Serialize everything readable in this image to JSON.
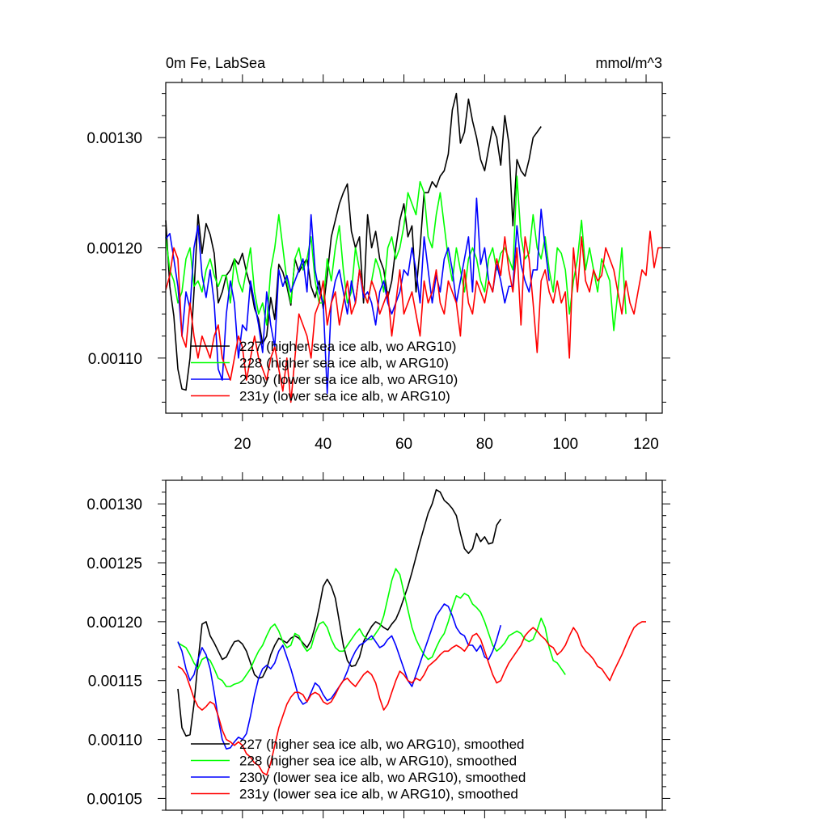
{
  "chart_data": [
    {
      "type": "line",
      "title_left": "0m Fe, LabSea",
      "title_right": "mmol/m^3",
      "xlabel": "",
      "ylabel": "",
      "xlim": [
        1,
        124
      ],
      "ylim": [
        0.00105,
        0.00135
      ],
      "xticks": [
        20,
        40,
        60,
        80,
        100,
        120
      ],
      "xticklabels": [
        "20",
        "40",
        "60",
        "80",
        "100",
        "120"
      ],
      "yticks": [
        0.0011,
        0.0012,
        0.0013
      ],
      "yticklabels": [
        "0.00110",
        "0.00120",
        "0.00130"
      ],
      "grid": false,
      "legend_position": "bottom-left",
      "series": [
        {
          "name": "227 (higher sea ice alb, wo ARG10)",
          "color": "#000000",
          "x_start": 1,
          "values": [
            0.001225,
            0.001165,
            0.001138,
            0.00109,
            0.001072,
            0.001071,
            0.0011,
            0.00116,
            0.00123,
            0.001195,
            0.001222,
            0.001212,
            0.001195,
            0.00115,
            0.00116,
            0.001175,
            0.00118,
            0.00119,
            0.001185,
            0.001195,
            0.001178,
            0.001165,
            0.001145,
            0.001135,
            0.001113,
            0.00112,
            0.001155,
            0.001135,
            0.001185,
            0.001178,
            0.001165,
            0.001148,
            0.00119,
            0.001178,
            0.001185,
            0.00119,
            0.001165,
            0.001155,
            0.00117,
            0.001145,
            0.001175,
            0.00121,
            0.001225,
            0.00124,
            0.00125,
            0.001258,
            0.001215,
            0.0012,
            0.00121,
            0.00115,
            0.00123,
            0.0012,
            0.001215,
            0.00119,
            0.00118,
            0.001155,
            0.00117,
            0.0012,
            0.001225,
            0.00124,
            0.00121,
            0.00122,
            0.00116,
            0.0012,
            0.00125,
            0.00125,
            0.00126,
            0.001255,
            0.001265,
            0.00127,
            0.001285,
            0.001325,
            0.00134,
            0.001295,
            0.001305,
            0.001335,
            0.001315,
            0.0013,
            0.00128,
            0.00127,
            0.00129,
            0.00131,
            0.0013,
            0.001275,
            0.00132,
            0.001295,
            0.00122,
            0.00128,
            0.00127,
            0.001265,
            0.00128,
            0.0013,
            0.001305,
            0.00131
          ]
        },
        {
          "name": "228 (higher sea ice alb, w ARG10)",
          "color": "#00ff00",
          "x_start": 1,
          "values": [
            0.00121,
            0.00118,
            0.00117,
            0.00115,
            0.00116,
            0.00119,
            0.0012,
            0.001165,
            0.00117,
            0.00116,
            0.00118,
            0.00119,
            0.001175,
            0.001165,
            0.001175,
            0.001175,
            0.00115,
            0.00119,
            0.00117,
            0.00116,
            0.00118,
            0.0012,
            0.00116,
            0.00114,
            0.00115,
            0.00113,
            0.00118,
            0.0012,
            0.00123,
            0.0012,
            0.00117,
            0.00115,
            0.00119,
            0.0012,
            0.00118,
            0.00119,
            0.00121,
            0.00117,
            0.00115,
            0.00115,
            0.00119,
            0.00117,
            0.0012,
            0.00122,
            0.00118,
            0.00115,
            0.00116,
            0.0012,
            0.00118,
            0.00116,
            0.00115,
            0.00117,
            0.00119,
            0.00118,
            0.00116,
            0.0012,
            0.00121,
            0.00119,
            0.0012,
            0.00122,
            0.00125,
            0.00124,
            0.00123,
            0.00126,
            0.00125,
            0.00121,
            0.0012,
            0.00123,
            0.00125,
            0.00122,
            0.00119,
            0.00117,
            0.0012,
            0.00118,
            0.00116,
            0.00119,
            0.0012,
            0.00119,
            0.00117,
            0.00116,
            0.00119,
            0.0012,
            0.00118,
            0.001195,
            0.0012,
            0.00119,
            0.00118,
            0.001265,
            0.00121,
            0.00119,
            0.001195,
            0.00123,
            0.0012,
            0.00119,
            0.00121,
            0.00118,
            0.00116,
            0.0012,
            0.001195,
            0.00118,
            0.00114,
            0.00117,
            0.00119,
            0.001225,
            0.00118,
            0.0012,
            0.00118,
            0.00116,
            0.00119,
            0.00118,
            0.00117,
            0.001125,
            0.00116,
            0.0012,
            0.00114
          ]
        },
        {
          "name": "230y (lower sea ice alb, wo ARG10)",
          "color": "#0000ff",
          "x_start": 1,
          "values": [
            0.001208,
            0.001213,
            0.00119,
            0.001165,
            0.00112,
            0.00116,
            0.001145,
            0.0012,
            0.00122,
            0.001175,
            0.001155,
            0.00118,
            0.00115,
            0.00109,
            0.00108,
            0.00114,
            0.00117,
            0.00115,
            0.0011,
            0.00113,
            0.001125,
            0.00117,
            0.00115,
            0.00113,
            0.001105,
            0.00116,
            0.00113,
            0.00111,
            0.00118,
            0.001165,
            0.001175,
            0.00116,
            0.00117,
            0.00118,
            0.00119,
            0.00116,
            0.00123,
            0.00118,
            0.00116,
            0.00115,
            0.001068,
            0.00115,
            0.00117,
            0.00118,
            0.00116,
            0.00114,
            0.00117,
            0.00115,
            0.00118,
            0.001155,
            0.00116,
            0.00115,
            0.00113,
            0.00116,
            0.00117,
            0.00115,
            0.00114,
            0.00115,
            0.00116,
            0.00118,
            0.001175,
            0.0012,
            0.00118,
            0.00115,
            0.00121,
            0.00118,
            0.00115,
            0.001175,
            0.00116,
            0.00119,
            0.0012,
            0.00118,
            0.00115,
            0.00117,
            0.00119,
            0.00121,
            0.00116,
            0.001245,
            0.001185,
            0.0012,
            0.00117,
            0.00116,
            0.001185,
            0.00117,
            0.00115,
            0.001165,
            0.001165,
            0.00122,
            0.001185,
            0.00117,
            0.00116,
            0.00118,
            0.00118,
            0.001235,
            0.0012,
            0.00117
          ]
        },
        {
          "name": "231y (lower sea ice alb, w ARG10)",
          "color": "#ff0000",
          "x_start": 1,
          "values": [
            0.001162,
            0.001175,
            0.0012,
            0.00119,
            0.00112,
            0.00111,
            0.00115,
            0.00112,
            0.0011,
            0.00112,
            0.00111,
            0.0011,
            0.00112,
            0.00113,
            0.0011,
            0.00109,
            0.00108,
            0.0011,
            0.00112,
            0.00111,
            0.00108,
            0.0011,
            0.00112,
            0.0011,
            0.00109,
            0.00108,
            0.0011,
            0.00111,
            0.00109,
            0.00107,
            0.0011,
            0.00106,
            0.0011,
            0.00114,
            0.00113,
            0.00112,
            0.0011,
            0.00114,
            0.00115,
            0.00117,
            0.00113,
            0.00115,
            0.00116,
            0.00113,
            0.00115,
            0.00117,
            0.00114,
            0.00115,
            0.00118,
            0.00116,
            0.00115,
            0.00117,
            0.00116,
            0.00114,
            0.00115,
            0.00116,
            0.00112,
            0.00115,
            0.00118,
            0.00114,
            0.00115,
            0.00116,
            0.00114,
            0.00112,
            0.00117,
            0.00115,
            0.00116,
            0.00118,
            0.00115,
            0.00114,
            0.00117,
            0.00116,
            0.00115,
            0.00112,
            0.00118,
            0.00115,
            0.00114,
            0.00117,
            0.00116,
            0.00115,
            0.00117,
            0.00116,
            0.00119,
            0.001175,
            0.00121,
            0.00118,
            0.00116,
            0.0012,
            0.00113,
            0.00121,
            0.00119,
            0.00115,
            0.001105,
            0.00117,
            0.00118,
            0.00116,
            0.00115,
            0.00117,
            0.00115,
            0.00116,
            0.0011,
            0.0012,
            0.00116,
            0.00121,
            0.00117,
            0.00116,
            0.00118,
            0.00117,
            0.001175,
            0.0012,
            0.00119,
            0.00118,
            0.00116,
            0.00114,
            0.00117,
            0.00115,
            0.00114,
            0.00116,
            0.00118,
            0.001175,
            0.001215,
            0.001182,
            0.0012,
            0.0012
          ]
        }
      ]
    },
    {
      "type": "line",
      "title_left": "",
      "title_right": "",
      "xlabel": "",
      "ylabel": "",
      "xlim": [
        1,
        124
      ],
      "ylim": [
        0.00104,
        0.00132
      ],
      "xticks": [
        20,
        40,
        60,
        80,
        100,
        120
      ],
      "xticklabels": [],
      "yticks": [
        0.00105,
        0.0011,
        0.00115,
        0.0012,
        0.00125,
        0.0013
      ],
      "yticklabels": [
        "0.00105",
        "0.00110",
        "0.00115",
        "0.00120",
        "0.00125",
        "0.00130"
      ],
      "grid": false,
      "legend_position": "bottom-left",
      "series": [
        {
          "name": "227 (higher sea ice alb, wo ARG10), smoothed",
          "color": "#000000",
          "x_start": 4,
          "values": [
            0.001143,
            0.00111,
            0.001103,
            0.001104,
            0.00113,
            0.001166,
            0.001198,
            0.0012,
            0.001188,
            0.001182,
            0.001175,
            0.001168,
            0.00117,
            0.001177,
            0.001183,
            0.001184,
            0.001181,
            0.001175,
            0.001165,
            0.001155,
            0.001152,
            0.001153,
            0.00116,
            0.001172,
            0.00118,
            0.001186,
            0.001184,
            0.001182,
            0.001186,
            0.001188,
            0.001186,
            0.001182,
            0.001178,
            0.001184,
            0.001196,
            0.001212,
            0.00123,
            0.001236,
            0.00123,
            0.00122,
            0.0012,
            0.00118,
            0.001167,
            0.001162,
            0.001163,
            0.00117,
            0.001183,
            0.00119,
            0.001196,
            0.0012,
            0.001198,
            0.001195,
            0.001193,
            0.001198,
            0.001202,
            0.00121,
            0.00122,
            0.00123,
            0.001242,
            0.001255,
            0.001268,
            0.00128,
            0.001292,
            0.0013,
            0.001312,
            0.00131,
            0.001303,
            0.0013,
            0.001296,
            0.00129,
            0.001275,
            0.001262,
            0.001258,
            0.001262,
            0.001275,
            0.001268,
            0.001272,
            0.001266,
            0.001267,
            0.001282,
            0.001287
          ]
        },
        {
          "name": "228 (higher sea ice alb, w ARG10), smoothed",
          "color": "#00ff00",
          "x_start": 4,
          "values": [
            0.001182,
            0.00118,
            0.001178,
            0.001172,
            0.001165,
            0.00116,
            0.001168,
            0.00117,
            0.001167,
            0.00116,
            0.001152,
            0.00115,
            0.001145,
            0.001145,
            0.001147,
            0.001148,
            0.00115,
            0.001155,
            0.00116,
            0.001168,
            0.001175,
            0.00118,
            0.001188,
            0.001195,
            0.001198,
            0.001192,
            0.001183,
            0.001178,
            0.00118,
            0.00119,
            0.001188,
            0.00118,
            0.001175,
            0.001178,
            0.00119,
            0.001198,
            0.0012,
            0.001195,
            0.001185,
            0.001178,
            0.001175,
            0.001175,
            0.00118,
            0.001185,
            0.00119,
            0.001194,
            0.001188,
            0.001185,
            0.001185,
            0.00119,
            0.001195,
            0.001205,
            0.00122,
            0.001235,
            0.001245,
            0.00124,
            0.001225,
            0.00121,
            0.001195,
            0.001185,
            0.001178,
            0.001172,
            0.001168,
            0.00117,
            0.001178,
            0.001185,
            0.00119,
            0.0012,
            0.001212,
            0.001222,
            0.00122,
            0.001224,
            0.001222,
            0.001215,
            0.001212,
            0.001208,
            0.0012,
            0.00119,
            0.00118,
            0.001175,
            0.001178,
            0.001182,
            0.001188,
            0.00119,
            0.001192,
            0.00119,
            0.001185,
            0.001183,
            0.001185,
            0.001193,
            0.001203,
            0.001195,
            0.001178,
            0.001167,
            0.001165,
            0.00116,
            0.001155
          ]
        },
        {
          "name": "230y (lower sea ice alb, wo ARG10), smoothed",
          "color": "#0000ff",
          "x_start": 4,
          "values": [
            0.001183,
            0.001175,
            0.00116,
            0.00115,
            0.001155,
            0.001168,
            0.001178,
            0.001172,
            0.00116,
            0.00114,
            0.001118,
            0.0011,
            0.001092,
            0.001093,
            0.001098,
            0.001102,
            0.0011,
            0.001105,
            0.00112,
            0.001138,
            0.001152,
            0.00116,
            0.001163,
            0.00116,
            0.001165,
            0.001175,
            0.00118,
            0.00117,
            0.00116,
            0.001148,
            0.001135,
            0.00113,
            0.001132,
            0.00114,
            0.001148,
            0.001145,
            0.001138,
            0.001133,
            0.001135,
            0.00114,
            0.001145,
            0.00115,
            0.001158,
            0.001168,
            0.001175,
            0.00118,
            0.001182,
            0.001185,
            0.001188,
            0.001183,
            0.001178,
            0.00118,
            0.001185,
            0.001188,
            0.00118,
            0.00117,
            0.00116,
            0.00115,
            0.001145,
            0.001155,
            0.001165,
            0.001175,
            0.001185,
            0.001195,
            0.001205,
            0.00121,
            0.001215,
            0.001213,
            0.001205,
            0.001195,
            0.00119,
            0.001188,
            0.00118,
            0.00118,
            0.001175,
            0.00118,
            0.00117,
            0.001168,
            0.001175,
            0.001185,
            0.001197
          ]
        },
        {
          "name": "231y (lower sea ice alb, w ARG10), smoothed",
          "color": "#ff0000",
          "x_start": 4,
          "values": [
            0.001162,
            0.00116,
            0.001155,
            0.001145,
            0.001135,
            0.001128,
            0.001125,
            0.001128,
            0.001132,
            0.00113,
            0.00112,
            0.001108,
            0.0011,
            0.001098,
            0.001095,
            0.001098,
            0.001095,
            0.001088,
            0.001085,
            0.00108,
            0.001078,
            0.001072,
            0.00107,
            0.00108,
            0.001095,
            0.00111,
            0.00112,
            0.00113,
            0.001136,
            0.00114,
            0.00114,
            0.001138,
            0.001132,
            0.001138,
            0.00114,
            0.001138,
            0.001132,
            0.00113,
            0.001132,
            0.001138,
            0.001145,
            0.00115,
            0.001152,
            0.001148,
            0.001145,
            0.00115,
            0.001155,
            0.001158,
            0.001155,
            0.001148,
            0.001135,
            0.001125,
            0.00113,
            0.00114,
            0.00115,
            0.001158,
            0.001155,
            0.00115,
            0.001148,
            0.001152,
            0.00115,
            0.001155,
            0.001162,
            0.001165,
            0.001168,
            0.001172,
            0.001175,
            0.001175,
            0.001178,
            0.00118,
            0.001178,
            0.001175,
            0.00118,
            0.001188,
            0.00119,
            0.001185,
            0.001175,
            0.001165,
            0.001155,
            0.001148,
            0.00115,
            0.001158,
            0.001165,
            0.00117,
            0.001175,
            0.00118,
            0.001188,
            0.001192,
            0.001195,
            0.001192,
            0.001188,
            0.001185,
            0.00118,
            0.001178,
            0.001172,
            0.001175,
            0.00118,
            0.001188,
            0.001195,
            0.00119,
            0.00118,
            0.001175,
            0.001172,
            0.001168,
            0.001162,
            0.00116,
            0.001155,
            0.00115,
            0.001158,
            0.001165,
            0.001172,
            0.00118,
            0.001188,
            0.001195,
            0.001198,
            0.0012,
            0.0012
          ]
        }
      ]
    }
  ]
}
